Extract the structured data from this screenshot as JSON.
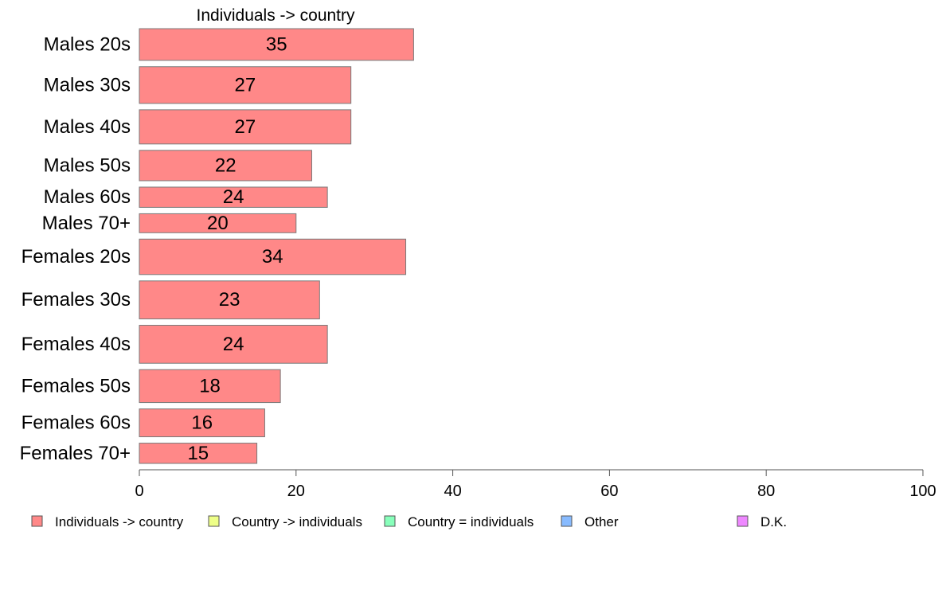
{
  "chart_data": {
    "type": "bar",
    "orientation": "horizontal",
    "title": "Individuals -> country",
    "categories": [
      "Males 20s",
      "Males 30s",
      "Males 40s",
      "Males 50s",
      "Males 60s",
      "Males 70+",
      "Females 20s",
      "Females 30s",
      "Females 40s",
      "Females 50s",
      "Females 60s",
      "Females 70+"
    ],
    "series": [
      {
        "name": "Individuals -> country",
        "color": "#ff8888",
        "values": [
          35,
          27,
          27,
          22,
          24,
          20,
          34,
          23,
          24,
          18,
          16,
          15
        ]
      }
    ],
    "bar_widths": [
      1.25,
      1.45,
      1.35,
      1.2,
      0.8,
      0.75,
      1.4,
      1.5,
      1.5,
      1.3,
      1.1,
      0.8
    ],
    "xlim": [
      0,
      100
    ],
    "xticks": [
      0,
      20,
      40,
      60,
      80,
      100
    ],
    "grid": false,
    "legend": {
      "placement": "bottom",
      "items": [
        {
          "label": "Individuals -> country",
          "color": "#ff8888"
        },
        {
          "label": "Country -> individuals",
          "color": "#eeff88"
        },
        {
          "label": "Country = individuals",
          "color": "#88ffbb"
        },
        {
          "label": "Other",
          "color": "#88bbff"
        },
        {
          "label": "D.K.",
          "color": "#ee88ff"
        }
      ]
    }
  }
}
